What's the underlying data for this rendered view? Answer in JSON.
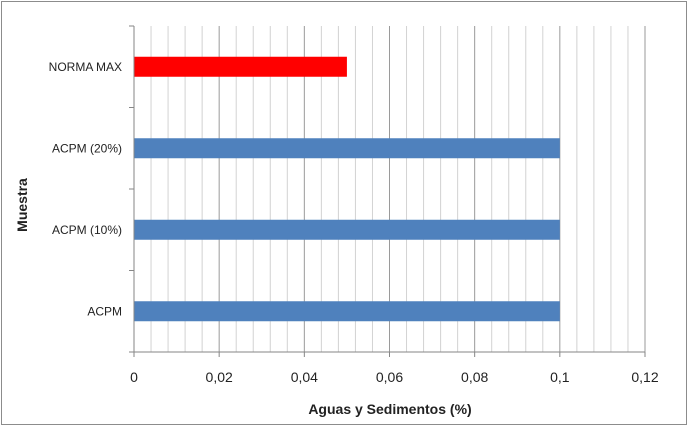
{
  "chart_data": {
    "type": "bar",
    "orientation": "horizontal",
    "categories": [
      "ACPM",
      "ACPM (10%)",
      "ACPM (20%)",
      "NORMA MAX"
    ],
    "values": [
      0.1,
      0.1,
      0.1,
      0.05
    ],
    "bar_colors": [
      "#4f81bd",
      "#4f81bd",
      "#4f81bd",
      "#ff0000"
    ],
    "xlabel": "Aguas y Sedimentos (%)",
    "ylabel": "Muestra",
    "xlim": [
      0,
      0.12
    ],
    "x_ticks": [
      "0",
      "0,02",
      "0,04",
      "0,06",
      "0,08",
      "0,1",
      "0,12"
    ],
    "x_major_step": 0.02,
    "x_minor_step": 0.004,
    "grid": "vertical major and minor",
    "legend": "none"
  }
}
